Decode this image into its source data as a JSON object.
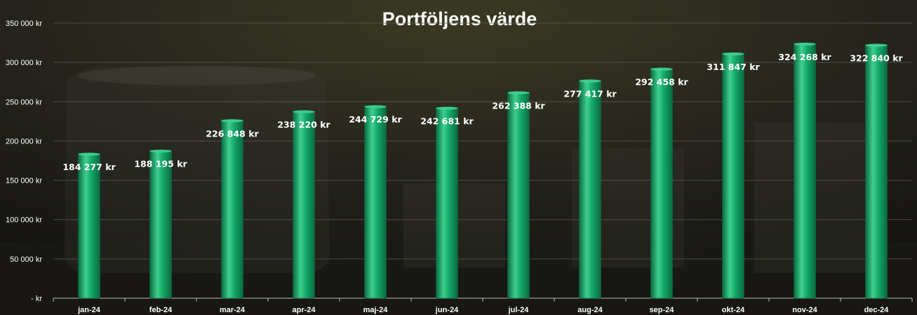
{
  "chart_data": {
    "type": "bar",
    "title": "Portföljens värde",
    "xlabel": "",
    "ylabel": "",
    "categories": [
      "jan-24",
      "feb-24",
      "mar-24",
      "apr-24",
      "maj-24",
      "jun-24",
      "jul-24",
      "aug-24",
      "sep-24",
      "okt-24",
      "nov-24",
      "dec-24"
    ],
    "values": [
      184277,
      188195,
      226848,
      238220,
      244729,
      242681,
      262388,
      277417,
      292458,
      311847,
      324268,
      322840
    ],
    "data_labels": [
      "184 277 kr",
      "188 195 kr",
      "226 848 kr",
      "238 220 kr",
      "244 729 kr",
      "242 681 kr",
      "262 388 kr",
      "277 417 kr",
      "292 458 kr",
      "311 847 kr",
      "324 268 kr",
      "322 840 kr"
    ],
    "ylim": [
      0,
      350000
    ],
    "yticks": [
      0,
      50000,
      100000,
      150000,
      200000,
      250000,
      300000,
      350000
    ],
    "ytick_labels": [
      "-   kr",
      "50 000 kr",
      "100 000 kr",
      "150 000 kr",
      "200 000 kr",
      "250 000 kr",
      "300 000 kr",
      "350 000 kr"
    ],
    "grid": true,
    "legend": "none",
    "colors": {
      "bar": "#13a868",
      "bar_light": "#3fd08f",
      "bar_dark": "#0a6a40",
      "text": "#ffffff",
      "gridline": "#5a5a52"
    }
  }
}
